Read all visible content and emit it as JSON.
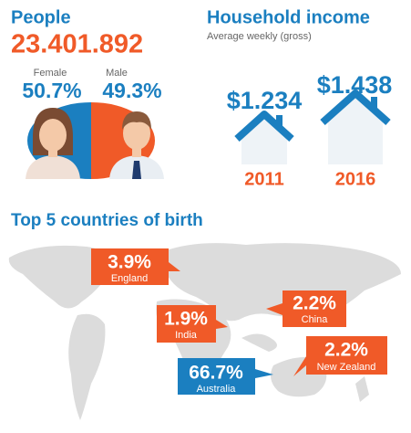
{
  "people": {
    "title": "People",
    "total": "23.401.892",
    "female": {
      "label": "Female",
      "value": "50.7%"
    },
    "male": {
      "label": "Male",
      "value": "49.3%"
    }
  },
  "household": {
    "title": "Household income",
    "subtitle": "Average weekly (gross)",
    "items": [
      {
        "amount": "$1.234",
        "year": "2011"
      },
      {
        "amount": "$1.438",
        "year": "2016"
      }
    ]
  },
  "countries": {
    "title": "Top 5 countries of birth",
    "items": [
      {
        "value": "3.9%",
        "name": "England"
      },
      {
        "value": "1.9%",
        "name": "India"
      },
      {
        "value": "2.2%",
        "name": "China"
      },
      {
        "value": "2.2%",
        "name": "New Zealand"
      },
      {
        "value": "66.7%",
        "name": "Australia"
      }
    ]
  }
}
